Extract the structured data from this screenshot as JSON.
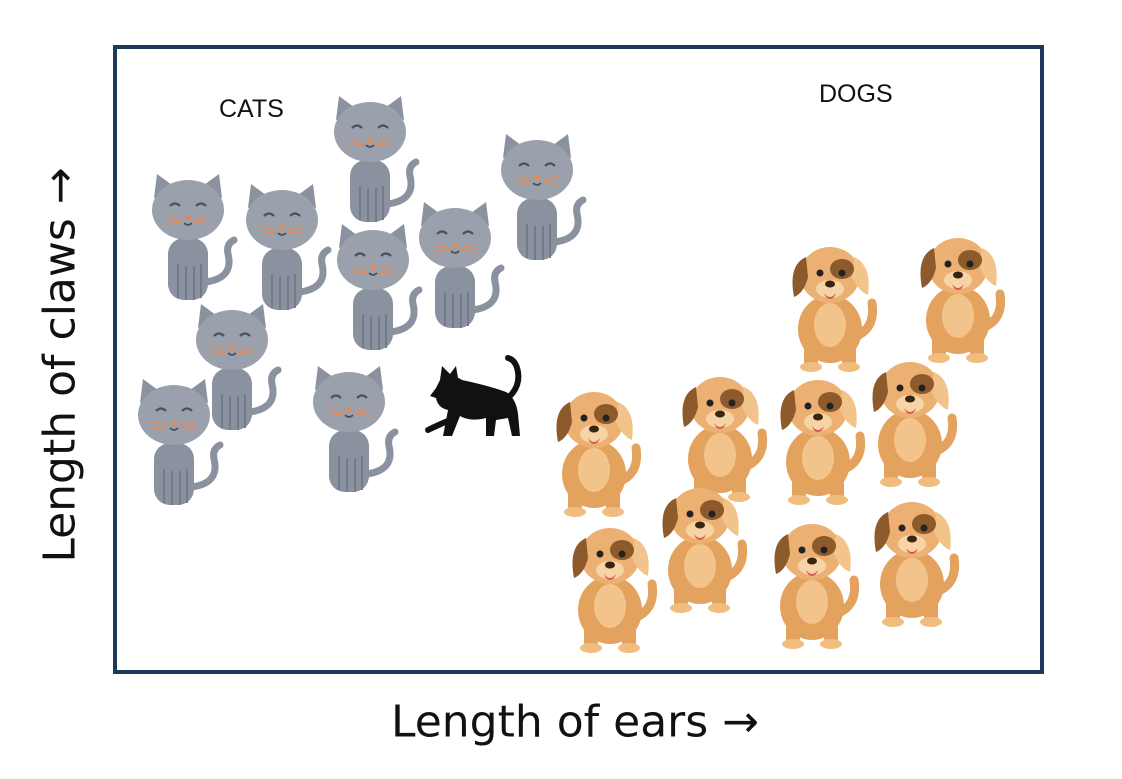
{
  "labels": {
    "y_axis": "Length of claws →",
    "x_axis": "Length of ears →",
    "group_cats": "CATS",
    "group_dogs": "DOGS"
  },
  "icons": {
    "cat": "gray-cat-icon",
    "dog": "puppy-icon",
    "unknown": "black-cat-silhouette-icon"
  },
  "colors": {
    "frame": "#1c3a5e",
    "cat_fur": "#8a92a0",
    "dog_fur": "#e3a35e",
    "dog_patch": "#8c5a2b",
    "unknown": "#111111"
  }
}
